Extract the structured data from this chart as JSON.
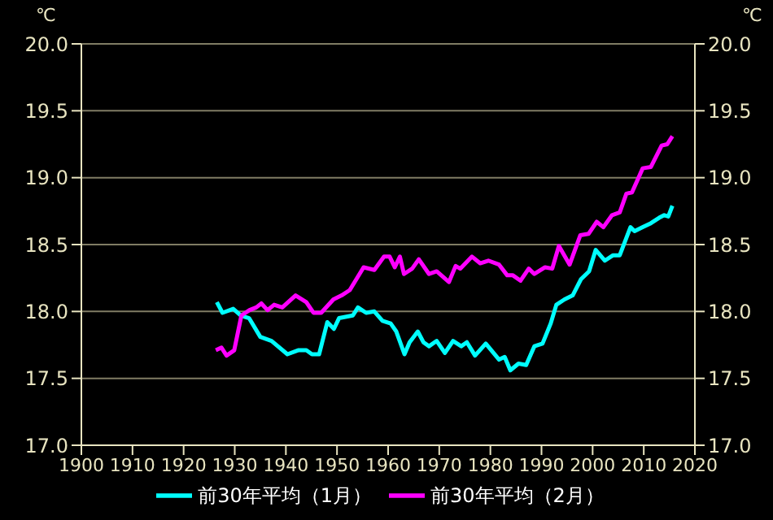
{
  "chart_data": {
    "type": "line",
    "ylabel": "℃",
    "y2label": "℃",
    "xlim": [
      1900,
      2020
    ],
    "xticks": [
      1900,
      1910,
      1920,
      1930,
      1940,
      1950,
      1960,
      1970,
      1980,
      1990,
      2000,
      2010,
      2020
    ],
    "ylim": [
      17,
      20
    ],
    "yticks": [
      {
        "value": 17,
        "label": "17.0"
      },
      {
        "value": 17.5,
        "label": "17.5"
      },
      {
        "value": 18,
        "label": "18.0"
      },
      {
        "value": 18.5,
        "label": "18.5"
      },
      {
        "value": 19,
        "label": "19.0"
      },
      {
        "value": 19.5,
        "label": "19.5"
      },
      {
        "value": 20,
        "label": "20.0"
      }
    ],
    "y2lim": [
      17,
      20
    ],
    "y2ticks": [
      {
        "value": 17,
        "label": "17.0"
      },
      {
        "value": 17.5,
        "label": "17.5"
      },
      {
        "value": 18,
        "label": "18.0"
      },
      {
        "value": 18.5,
        "label": "18.5"
      },
      {
        "value": 19,
        "label": "19.0"
      },
      {
        "value": 19.5,
        "label": "19.5"
      },
      {
        "value": 20,
        "label": "20.0"
      }
    ],
    "grid": "y",
    "legend": "bottom",
    "series": [
      {
        "name": "前30年平均（1月）",
        "color": "#00ffff",
        "x": [
          1926.5,
          1927.6,
          1929.7,
          1931.2,
          1932.8,
          1935,
          1937.2,
          1940.3,
          1942.4,
          1944,
          1945.1,
          1946.5,
          1948.1,
          1949.4,
          1950.4,
          1953.1,
          1954.1,
          1955.7,
          1957.3,
          1958.9,
          1960.5,
          1961.6,
          1963.2,
          1964.2,
          1965.8,
          1966.9,
          1968,
          1969.5,
          1971.1,
          1972.7,
          1974.3,
          1975.4,
          1977,
          1979.1,
          1981.7,
          1982.8,
          1983.9,
          1985.5,
          1987,
          1988.6,
          1990.2,
          1991.8,
          1992.9,
          1994.5,
          1996.1,
          1997.7,
          1999.3,
          2000.6,
          2002.4,
          2004,
          2005.3,
          2007.4,
          2008.2,
          2009.8,
          2011.4,
          2013,
          2014,
          2014.8,
          2015.6
        ],
        "values": [
          18.07,
          17.99,
          18.02,
          17.97,
          17.95,
          17.81,
          17.78,
          17.68,
          17.71,
          17.71,
          17.68,
          17.68,
          17.92,
          17.87,
          17.95,
          17.97,
          18.03,
          17.99,
          18.0,
          17.93,
          17.91,
          17.85,
          17.68,
          17.77,
          17.85,
          17.77,
          17.74,
          17.78,
          17.69,
          17.78,
          17.74,
          17.77,
          17.67,
          17.76,
          17.64,
          17.66,
          17.56,
          17.61,
          17.6,
          17.74,
          17.76,
          17.91,
          18.05,
          18.09,
          18.12,
          18.24,
          18.3,
          18.46,
          18.38,
          18.42,
          18.42,
          18.63,
          18.6,
          18.63,
          18.66,
          18.7,
          18.72,
          18.71,
          18.79
        ]
      },
      {
        "name": "前30年平均（2月）",
        "color": "#ff00ff",
        "x": [
          1926.3,
          1927.4,
          1928.4,
          1929.9,
          1931.3,
          1932.9,
          1934.2,
          1935.2,
          1936.4,
          1937.7,
          1939.3,
          1941.9,
          1944,
          1945.4,
          1946.9,
          1949.3,
          1950.9,
          1952.5,
          1955.2,
          1957.3,
          1959.2,
          1960.3,
          1961.3,
          1962.3,
          1963.1,
          1964.7,
          1966,
          1968,
          1969.5,
          1971.9,
          1973.2,
          1974.1,
          1976.4,
          1978,
          1979.6,
          1981.7,
          1983.3,
          1984.4,
          1985.9,
          1987.5,
          1988.6,
          1990.7,
          1992.1,
          1993.4,
          1995.5,
          1997.6,
          1999.2,
          2000.8,
          2002.1,
          2003.8,
          2005.3,
          2006.6,
          2007.7,
          2009.8,
          2011.4,
          2013.5,
          2014.6,
          2015.6
        ],
        "values": [
          17.71,
          17.73,
          17.67,
          17.71,
          17.97,
          18.01,
          18.03,
          18.06,
          18.01,
          18.05,
          18.03,
          18.12,
          18.07,
          17.99,
          17.99,
          18.09,
          18.12,
          18.16,
          18.33,
          18.31,
          18.41,
          18.41,
          18.33,
          18.41,
          18.28,
          18.32,
          18.39,
          18.28,
          18.3,
          18.22,
          18.34,
          18.32,
          18.41,
          18.36,
          18.38,
          18.35,
          18.27,
          18.27,
          18.23,
          18.32,
          18.28,
          18.33,
          18.32,
          18.49,
          18.35,
          18.57,
          18.58,
          18.67,
          18.63,
          18.72,
          18.74,
          18.88,
          18.89,
          19.07,
          19.08,
          19.24,
          19.25,
          19.31
        ]
      }
    ]
  }
}
